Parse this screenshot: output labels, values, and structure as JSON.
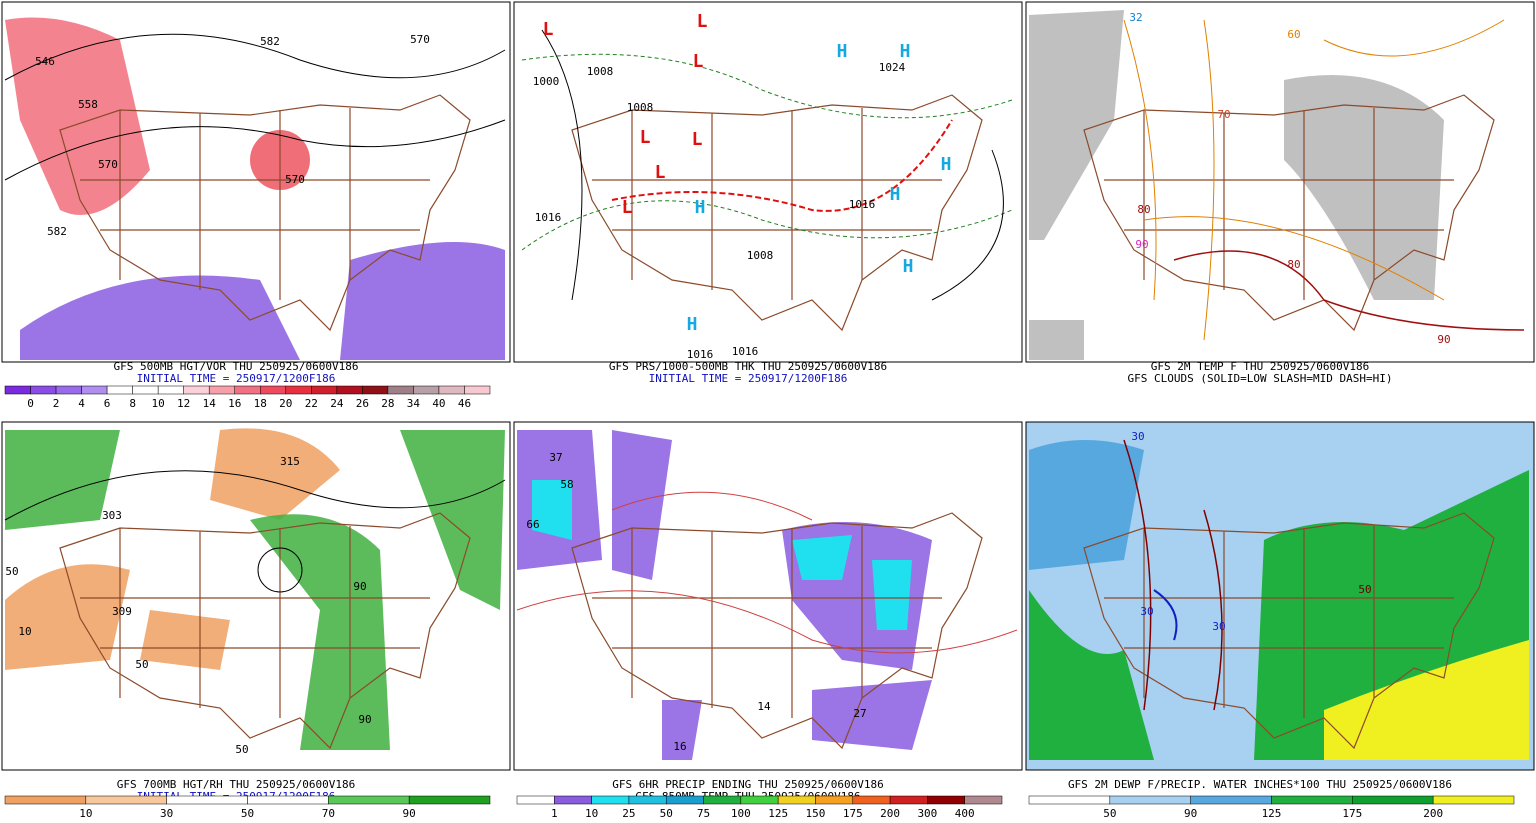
{
  "panels": [
    {
      "caption": [
        "GFS 500MB HGT/VOR THU 250925/0600V186",
        "INITIAL TIME = 250917/1200F186"
      ],
      "map_labels": [
        {
          "text": "546",
          "color": "#000"
        },
        {
          "text": "558",
          "color": "#000"
        },
        {
          "text": "582",
          "color": "#000"
        },
        {
          "text": "570",
          "color": "#000"
        },
        {
          "text": "570",
          "color": "#000"
        },
        {
          "text": "570",
          "color": "#000"
        },
        {
          "text": "582",
          "color": "#000"
        }
      ],
      "colorbar": {
        "colors": [
          "#7a2be0",
          "#8a4ee6",
          "#9a6aec",
          "#b08ef0",
          "#ffffff",
          "#ffffff",
          "#ffffff",
          "#fbd0d8",
          "#f7a0ac",
          "#f27084",
          "#ee4a62",
          "#e8303f",
          "#d0202e",
          "#b01020",
          "#901018",
          "#a08088",
          "#b8a0a8",
          "#e0b8c0",
          "#f8c8d0"
        ],
        "labels": [
          0,
          2,
          4,
          6,
          8,
          10,
          12,
          14,
          16,
          18,
          20,
          22,
          24,
          26,
          28,
          34,
          40,
          46
        ]
      }
    },
    {
      "caption": [
        "GFS PRS/1000-500MB THK THU 250925/0600V186",
        "INITIAL TIME = 250917/1200F186"
      ],
      "map_labels": [
        {
          "text": "1000",
          "color": "#000"
        },
        {
          "text": "1008",
          "color": "#000"
        },
        {
          "text": "1008",
          "color": "#000"
        },
        {
          "text": "1024",
          "color": "#000"
        },
        {
          "text": "1016",
          "color": "#000"
        },
        {
          "text": "1016",
          "color": "#000"
        },
        {
          "text": "1008",
          "color": "#000"
        },
        {
          "text": "1016",
          "color": "#000"
        },
        {
          "text": "1016",
          "color": "#000"
        },
        {
          "text": "L",
          "color": "#e01010"
        },
        {
          "text": "L",
          "color": "#e01010"
        },
        {
          "text": "L",
          "color": "#e01010"
        },
        {
          "text": "L",
          "color": "#e01010"
        },
        {
          "text": "L",
          "color": "#e01010"
        },
        {
          "text": "L",
          "color": "#e01010"
        },
        {
          "text": "L",
          "color": "#e01010"
        },
        {
          "text": "H",
          "color": "#18a8e0"
        },
        {
          "text": "H",
          "color": "#18a8e0"
        },
        {
          "text": "H",
          "color": "#18a8e0"
        },
        {
          "text": "H",
          "color": "#18a8e0"
        },
        {
          "text": "H",
          "color": "#18a8e0"
        },
        {
          "text": "H",
          "color": "#18a8e0"
        },
        {
          "text": "H",
          "color": "#18a8e0"
        }
      ]
    },
    {
      "caption": [
        "GFS 2M TEMP F THU 250925/0600V186",
        "GFS CLOUDS (SOLID=LOW SLASH=MID DASH=HI)"
      ],
      "map_labels": [
        {
          "text": "32",
          "color": "#1080d0"
        },
        {
          "text": "60",
          "color": "#e08000"
        },
        {
          "text": "70",
          "color": "#d04020"
        },
        {
          "text": "80",
          "color": "#a01010"
        },
        {
          "text": "80",
          "color": "#a01010"
        },
        {
          "text": "90",
          "color": "#a01010"
        },
        {
          "text": "90",
          "color": "#e020c0"
        }
      ]
    },
    {
      "caption": [
        "GFS 700MB HGT/RH THU 250925/0600V186",
        "INITIAL TIME = 250917/1200F186"
      ],
      "map_labels": [
        {
          "text": "315",
          "color": "#000"
        },
        {
          "text": "303",
          "color": "#000"
        },
        {
          "text": "309",
          "color": "#000"
        },
        {
          "text": "50",
          "color": "#000"
        },
        {
          "text": "10",
          "color": "#000"
        },
        {
          "text": "50",
          "color": "#000"
        },
        {
          "text": "90",
          "color": "#000"
        },
        {
          "text": "50",
          "color": "#000"
        },
        {
          "text": "90",
          "color": "#000"
        }
      ],
      "colorbar": {
        "colors": [
          "#f0a060",
          "#f7c89c",
          "#ffffff",
          "#ffffff",
          "#58c858",
          "#20a020"
        ],
        "labels": [
          10,
          30,
          50,
          70,
          90
        ]
      }
    },
    {
      "caption": [
        "GFS 6HR PRECIP ENDING THU 250925/0600V186",
        "GFS 850MB TEMP THU 250925/0600V186"
      ],
      "map_labels": [
        {
          "text": "37",
          "color": "#000"
        },
        {
          "text": "58",
          "color": "#000"
        },
        {
          "text": "66",
          "color": "#000"
        },
        {
          "text": "14",
          "color": "#000"
        },
        {
          "text": "27",
          "color": "#000"
        },
        {
          "text": "16",
          "color": "#000"
        }
      ],
      "colorbar": {
        "colors": [
          "#ffffff",
          "#8a5ce0",
          "#20e0f0",
          "#20c0e0",
          "#1aa0d0",
          "#20b040",
          "#40d040",
          "#f0d020",
          "#f8a020",
          "#f06020",
          "#d02020",
          "#900000",
          "#b08890"
        ],
        "labels": [
          1,
          10,
          25,
          50,
          75,
          100,
          125,
          150,
          175,
          200,
          300,
          400
        ]
      }
    },
    {
      "caption": [
        "GFS 2M DEWP F/PRECIP. WATER INCHES*100 THU 250925/0600V186"
      ],
      "map_labels": [
        {
          "text": "30",
          "color": "#1020c0"
        },
        {
          "text": "30",
          "color": "#1020c0"
        },
        {
          "text": "30",
          "color": "#1020c0"
        },
        {
          "text": "50",
          "color": "#600000"
        }
      ],
      "colorbar": {
        "colors": [
          "#ffffff",
          "#a8d0f0",
          "#58a8e0",
          "#20b040",
          "#10a030",
          "#f0f020"
        ],
        "labels": [
          50,
          90,
          125,
          175,
          200
        ]
      }
    }
  ]
}
